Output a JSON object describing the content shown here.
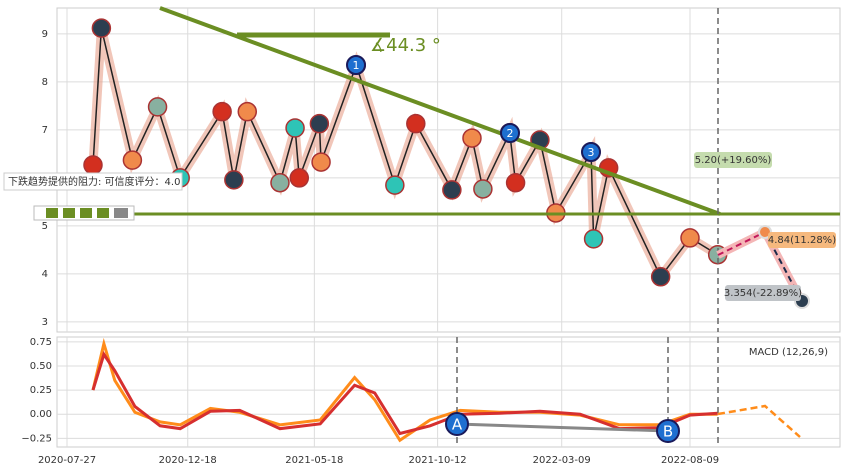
{
  "chart_data": [
    {
      "type": "line",
      "name": "price",
      "x": [
        "2020-08-27",
        "2020-09-06",
        "2020-10-13",
        "2020-11-12",
        "2020-12-09",
        "2021-01-28",
        "2021-02-11",
        "2021-02-27",
        "2021-04-07",
        "2021-04-25",
        "2021-04-30",
        "2021-05-24",
        "2021-05-26",
        "2021-07-07",
        "2021-08-22",
        "2021-09-16",
        "2021-10-29",
        "2021-11-22",
        "2021-12-05",
        "2022-01-06",
        "2022-01-13",
        "2022-02-11",
        "2022-03-02",
        "2022-04-13",
        "2022-04-16",
        "2022-05-04",
        "2022-07-05",
        "2022-08-09",
        "2022-09-11"
      ],
      "series": [
        {
          "color": "#222222",
          "values": [
            6.27,
            9.12,
            6.37,
            7.48,
            6.0,
            7.38,
            5.96,
            7.38,
            5.9,
            7.04,
            6.0,
            7.13,
            6.33,
            8.35,
            5.85,
            7.13,
            5.75,
            6.83,
            5.77,
            6.94,
            5.9,
            6.79,
            5.27,
            6.54,
            4.73,
            6.21,
            3.94,
            4.75,
            4.4
          ]
        }
      ],
      "ylim": [
        2.79,
        9.54
      ],
      "yticks": [
        3,
        4,
        5,
        6,
        7,
        8,
        9
      ],
      "grid": true,
      "xticks": [
        "2020-07-27",
        "2020-12-18",
        "2021-05-18",
        "2021-10-12",
        "2022-03-09",
        "2022-08-09"
      ],
      "wave_labels": [
        "1",
        "2",
        "3"
      ],
      "trend_angle": "∡44.3 °",
      "resistance_note": "下跌趋势提供的阻力: 可信度评分：4.0",
      "forecasts": [
        "5.20(+19.60%)",
        "4.84(11.28%)",
        "3.354(-22.89%)"
      ]
    },
    {
      "type": "line",
      "name": "macd",
      "title": "MACD (12,26,9)",
      "x": [
        "2020-08-27",
        "2020-09-09",
        "2020-09-22",
        "2020-10-16",
        "2020-11-15",
        "2020-12-09",
        "2021-01-14",
        "2021-02-18",
        "2021-04-07",
        "2021-05-25",
        "2021-07-05",
        "2021-07-29",
        "2021-08-28",
        "2021-10-03",
        "2021-11-08",
        "2021-12-25",
        "2022-02-11",
        "2022-03-31",
        "2022-05-17",
        "2022-07-04",
        "2022-08-09",
        "2022-09-11"
      ],
      "series": [
        {
          "color": "#ff8c1a",
          "values": [
            0.25,
            0.73,
            0.35,
            0.02,
            -0.08,
            -0.11,
            0.06,
            0.02,
            -0.11,
            -0.06,
            0.38,
            0.15,
            -0.27,
            -0.06,
            0.04,
            0.02,
            0.02,
            -0.01,
            -0.11,
            -0.11,
            0.0,
            0.0
          ]
        },
        {
          "color": "#d62f2f",
          "values": [
            0.25,
            0.62,
            0.45,
            0.08,
            -0.12,
            -0.15,
            0.03,
            0.04,
            -0.15,
            -0.1,
            0.3,
            0.22,
            -0.2,
            -0.12,
            0.0,
            0.01,
            0.03,
            0.0,
            -0.15,
            -0.14,
            -0.01,
            0.01
          ]
        }
      ],
      "ylim": [
        -0.34,
        0.8
      ],
      "yticks": [
        {
          "value": 0.75,
          "label": "0.75"
        },
        {
          "value": 0.5,
          "label": "0.50"
        },
        {
          "value": 0.25,
          "label": "0.25"
        },
        {
          "value": 0,
          "label": "0.00"
        },
        {
          "value": -0.25,
          "label": "−0.25"
        }
      ],
      "points": [
        "A",
        "B"
      ]
    }
  ]
}
